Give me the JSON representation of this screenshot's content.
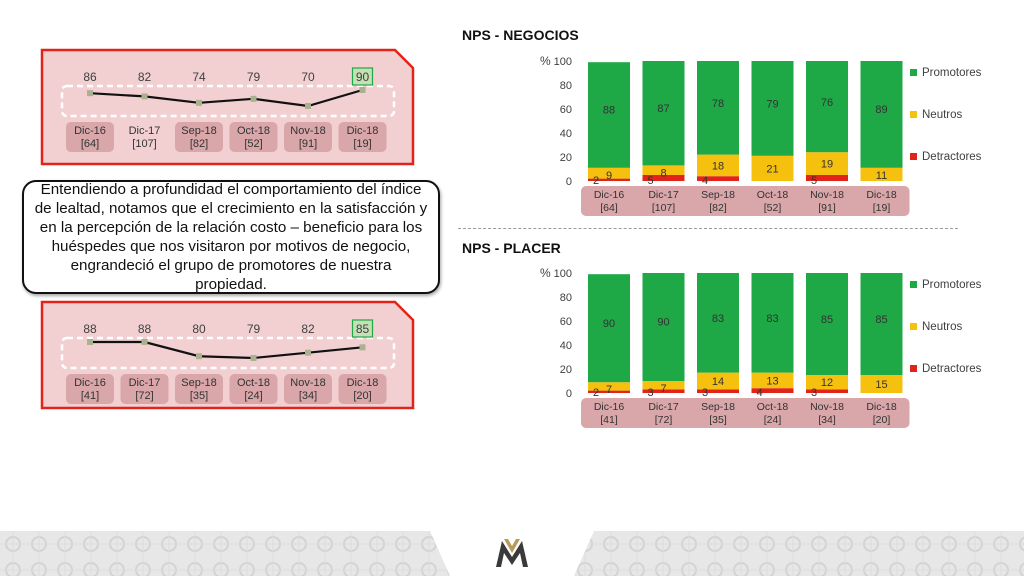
{
  "callout_text": "Entendiendo a profundidad el comportamiento del índice de lealtad, notamos que el crecimiento en la satisfacción y en la percepción de la relación costo – beneficio para los huéspedes que nos visitaron por motivos de negocio, engrandeció el grupo de promotores de nuestra propiedad.",
  "legend": [
    {
      "name": "Promotores",
      "color": "#1FA846"
    },
    {
      "name": "Neutros",
      "color": "#F5C10E"
    },
    {
      "name": "Detractores",
      "color": "#E2231A"
    }
  ],
  "colors": {
    "frame_red": "#E2231A",
    "frame_fill": "#F2D0D2",
    "label_pill": "#D9A6A9",
    "line": "#111111",
    "marker": "#A9B18F",
    "highlight_fill": "#C5E0B4",
    "highlight_border": "#1FA846"
  },
  "chart_data": [
    {
      "type": "line",
      "x": [
        "Dic-16",
        "Dic-17",
        "Sep-18",
        "Oct-18",
        "Nov-18",
        "Dic-18"
      ],
      "sub": [
        "[64]",
        "[107]",
        "[82]",
        "[52]",
        "[91]",
        "[19]"
      ],
      "values": [
        86,
        82,
        74,
        79,
        70,
        90
      ]
    },
    {
      "type": "line",
      "x": [
        "Dic-16",
        "Dic-17",
        "Sep-18",
        "Oct-18",
        "Nov-18",
        "Dic-18"
      ],
      "sub": [
        "[41]",
        "[72]",
        "[35]",
        "[24]",
        "[34]",
        "[20]"
      ],
      "values": [
        88,
        88,
        80,
        79,
        82,
        85
      ]
    },
    {
      "type": "bar",
      "title": "NPS - NEGOCIOS",
      "ylabel": "%",
      "ylim": [
        0,
        100
      ],
      "yticks": [
        0,
        20,
        40,
        60,
        80,
        100
      ],
      "categories": [
        "Dic-16",
        "Dic-17",
        "Sep-18",
        "Oct-18",
        "Nov-18",
        "Dic-18"
      ],
      "sub": [
        "[64]",
        "[107]",
        "[82]",
        "[52]",
        "[91]",
        "[19]"
      ],
      "series": [
        {
          "name": "Detractores",
          "values": [
            2,
            5,
            4,
            0,
            5,
            0
          ],
          "labels": [
            "2",
            "5",
            "4",
            "",
            "5",
            ""
          ]
        },
        {
          "name": "Neutros",
          "values": [
            9,
            8,
            18,
            21,
            19,
            11
          ],
          "labels": [
            "9",
            "8",
            "18",
            "21",
            "19",
            "11"
          ]
        },
        {
          "name": "Promotores",
          "values": [
            88,
            87,
            78,
            79,
            76,
            89
          ],
          "labels": [
            "88",
            "87",
            "78",
            "79",
            "76",
            "89"
          ]
        }
      ]
    },
    {
      "type": "bar",
      "title": "NPS - PLACER",
      "ylabel": "%",
      "ylim": [
        0,
        100
      ],
      "yticks": [
        0,
        20,
        40,
        60,
        80,
        100
      ],
      "categories": [
        "Dic-16",
        "Dic-17",
        "Sep-18",
        "Oct-18",
        "Nov-18",
        "Dic-18"
      ],
      "sub": [
        "[41]",
        "[72]",
        "[35]",
        "[24]",
        "[34]",
        "[20]"
      ],
      "series": [
        {
          "name": "Detractores",
          "values": [
            2,
            3,
            3,
            4,
            3,
            0
          ],
          "labels": [
            "2",
            "3",
            "3",
            "4",
            "3",
            ""
          ]
        },
        {
          "name": "Neutros",
          "values": [
            7,
            7,
            14,
            13,
            12,
            15
          ],
          "labels": [
            "7",
            "7",
            "14",
            "13",
            "12",
            "15"
          ]
        },
        {
          "name": "Promotores",
          "values": [
            90,
            90,
            83,
            83,
            85,
            85
          ],
          "labels": [
            "90",
            "90",
            "83",
            "83",
            "85",
            "85"
          ]
        }
      ]
    }
  ]
}
